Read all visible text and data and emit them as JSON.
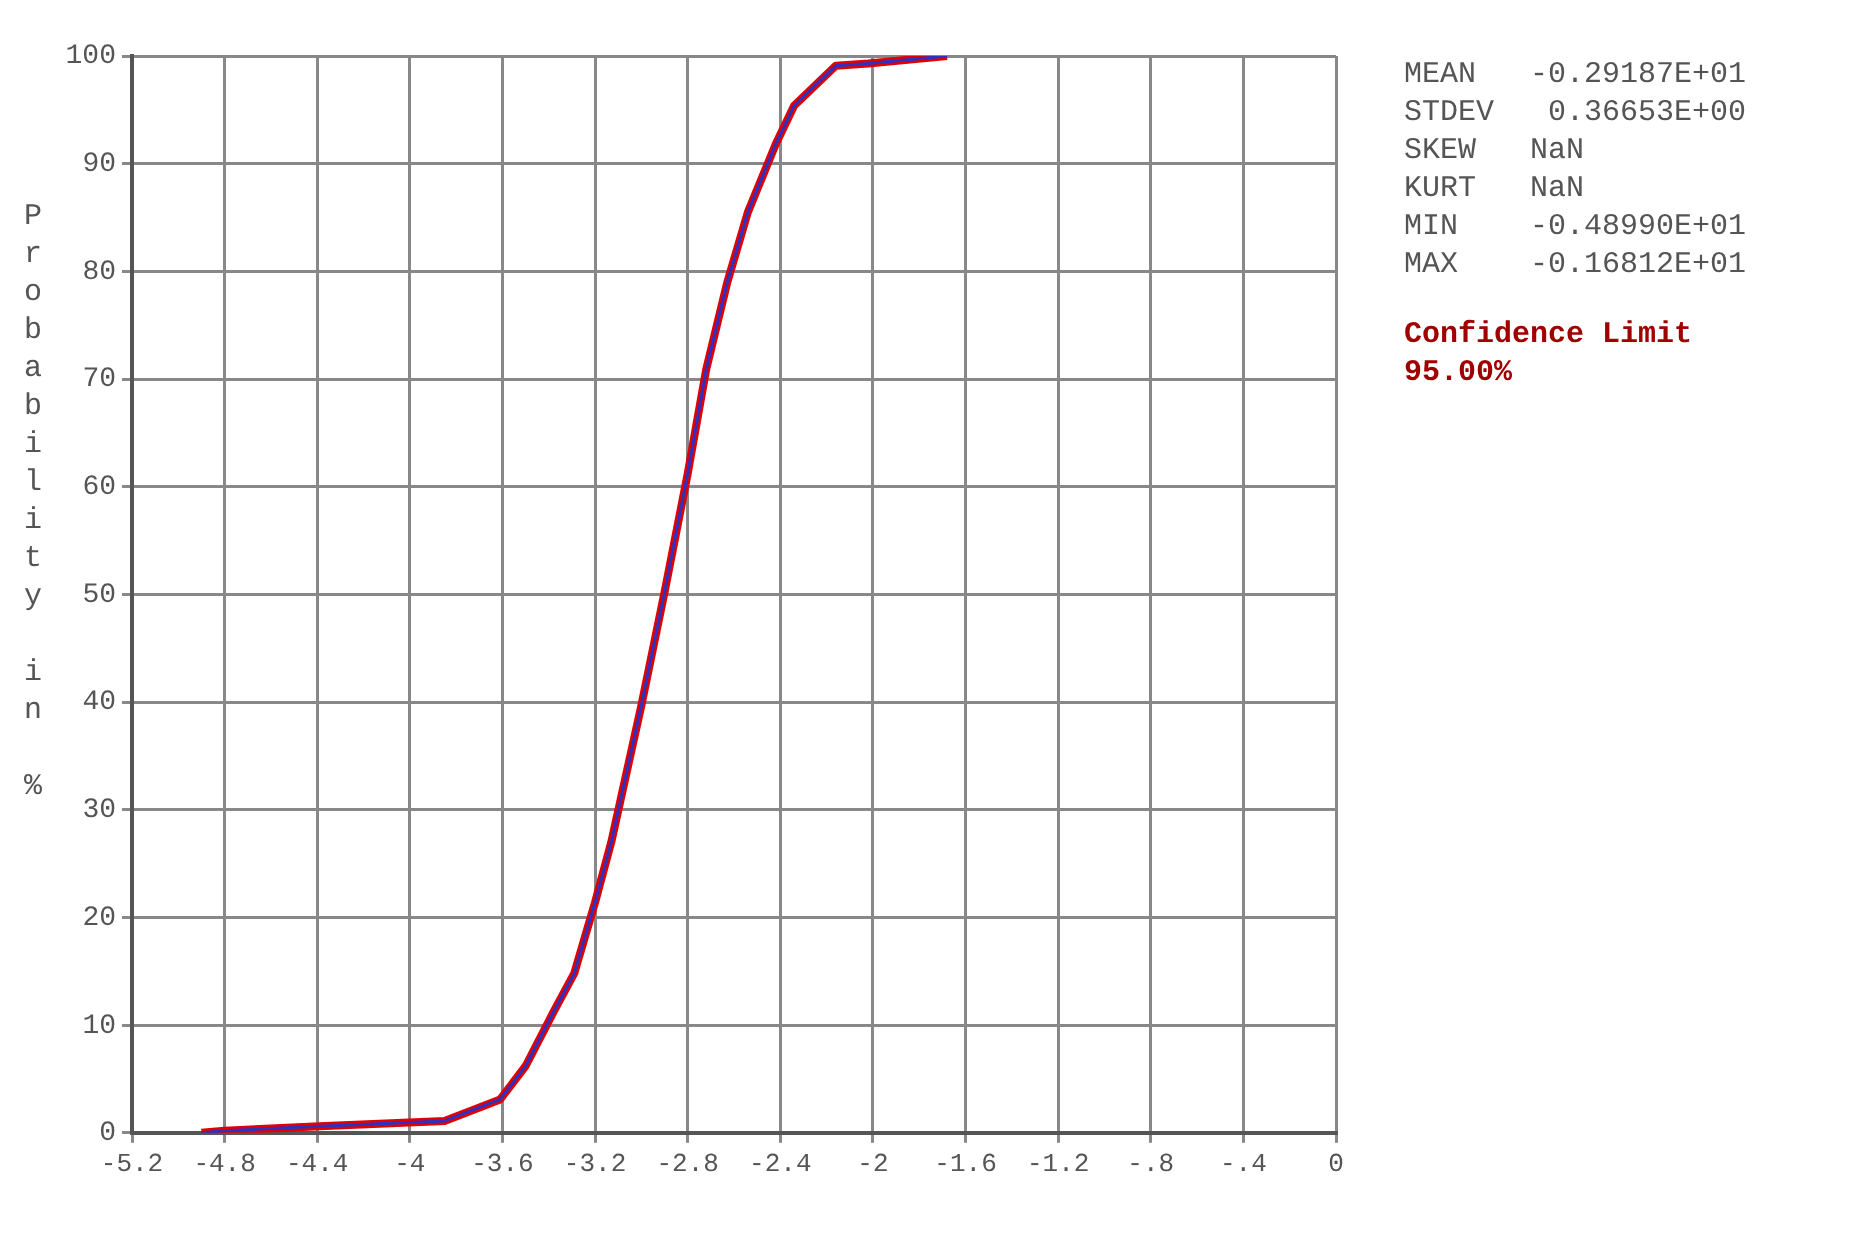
{
  "chart_data": {
    "type": "line",
    "ylabel": "Probability in %",
    "xlim": [
      -5.2,
      0
    ],
    "xticks": [
      {
        "value": -5.2,
        "label": "-5.2"
      },
      {
        "value": -4.8,
        "label": "-4.8"
      },
      {
        "value": -4.4,
        "label": "-4.4"
      },
      {
        "value": -4,
        "label": "-4"
      },
      {
        "value": -3.6,
        "label": "-3.6"
      },
      {
        "value": -3.2,
        "label": "-3.2"
      },
      {
        "value": -2.8,
        "label": "-2.8"
      },
      {
        "value": -2.4,
        "label": "-2.4"
      },
      {
        "value": -2,
        "label": "-2"
      },
      {
        "value": -1.6,
        "label": "-1.6"
      },
      {
        "value": -1.2,
        "label": "-1.2"
      },
      {
        "value": -0.8,
        "label": "-.8"
      },
      {
        "value": -0.4,
        "label": "-.4"
      },
      {
        "value": 0,
        "label": "0"
      }
    ],
    "ylim": [
      0,
      100
    ],
    "yticks": [
      0,
      10,
      20,
      30,
      40,
      50,
      60,
      70,
      80,
      90,
      100
    ],
    "grid": true,
    "legend": false,
    "marker": "none",
    "line_style": "solid",
    "series": [
      {
        "color": "#e00000",
        "x": [
          -4.9,
          -4.8,
          -4.39,
          -3.85,
          -3.61,
          -3.5,
          -3.38,
          -3.29,
          -3.2,
          -3.13,
          -3.0,
          -2.9,
          -2.8,
          -2.72,
          -2.63,
          -2.54,
          -2.42,
          -2.34,
          -2.16,
          -2.02,
          -1.68
        ],
        "values": [
          0,
          0.2,
          0.6,
          1.1,
          3.1,
          6.2,
          11.2,
          14.8,
          21.4,
          27,
          39.7,
          50.2,
          61.2,
          70.9,
          78.9,
          85.5,
          91.8,
          95.4,
          99.1,
          99.3,
          100
        ]
      },
      {
        "color": "#3030c0",
        "x": [
          -4.9,
          -4.8,
          -4.39,
          -3.85,
          -3.61,
          -3.5,
          -3.38,
          -3.29,
          -3.2,
          -3.13,
          -3.0,
          -2.9,
          -2.8,
          -2.72,
          -2.63,
          -2.54,
          -2.42,
          -2.34,
          -2.16,
          -2.02,
          -1.68
        ],
        "values": [
          0,
          0.2,
          0.6,
          1.1,
          3.1,
          6.2,
          11.2,
          14.8,
          21.4,
          27,
          39.7,
          50.2,
          61.2,
          70.9,
          78.9,
          85.5,
          91.8,
          95.4,
          99.1,
          99.3,
          100
        ]
      }
    ],
    "annotations": [
      "MEAN   -0.29187E+01",
      "STDEV   0.36653E+00",
      "SKEW   NaN",
      "KURT   NaN",
      "MIN    -0.48990E+01",
      "MAX    -0.16812E+01",
      "Confidence Limit",
      "95.00%"
    ]
  }
}
